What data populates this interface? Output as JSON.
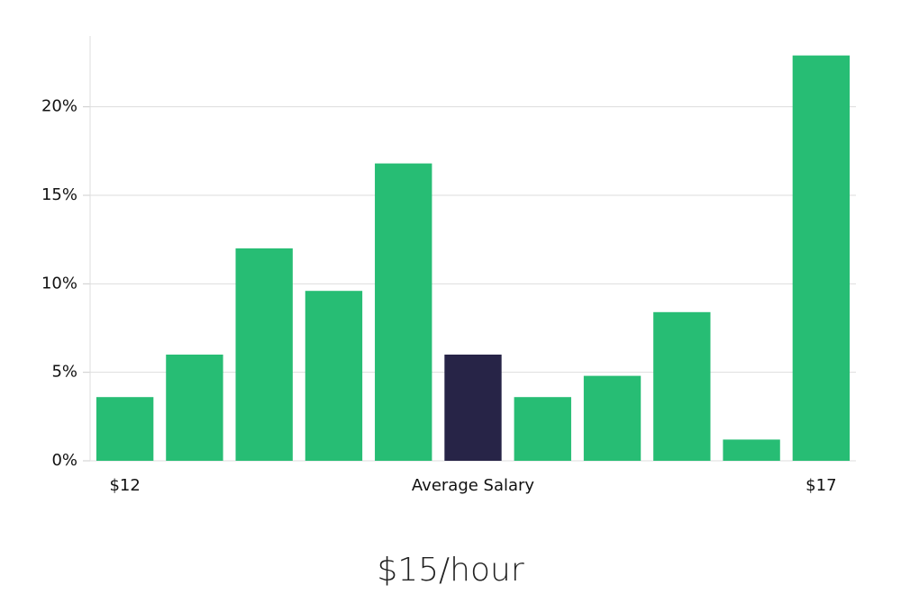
{
  "chart_data": {
    "type": "bar",
    "title": "$15/hour",
    "categories": [
      "$12",
      null,
      null,
      null,
      null,
      "Average Salary",
      null,
      null,
      null,
      null,
      "$17"
    ],
    "values": [
      3.6,
      6.0,
      12.0,
      9.6,
      16.8,
      6.0,
      3.6,
      4.8,
      8.4,
      1.2,
      22.9
    ],
    "colors": [
      "#27bd74",
      "#27bd74",
      "#27bd74",
      "#27bd74",
      "#27bd74",
      "#272447",
      "#27bd74",
      "#27bd74",
      "#27bd74",
      "#27bd74",
      "#27bd74"
    ],
    "ylim": [
      0,
      24
    ],
    "yticks": [
      {
        "value": 0,
        "label": "0%"
      },
      {
        "value": 5,
        "label": "5%"
      },
      {
        "value": 10,
        "label": "10%"
      },
      {
        "value": 15,
        "label": "15%"
      },
      {
        "value": 20,
        "label": "20%"
      }
    ],
    "grid": true
  }
}
